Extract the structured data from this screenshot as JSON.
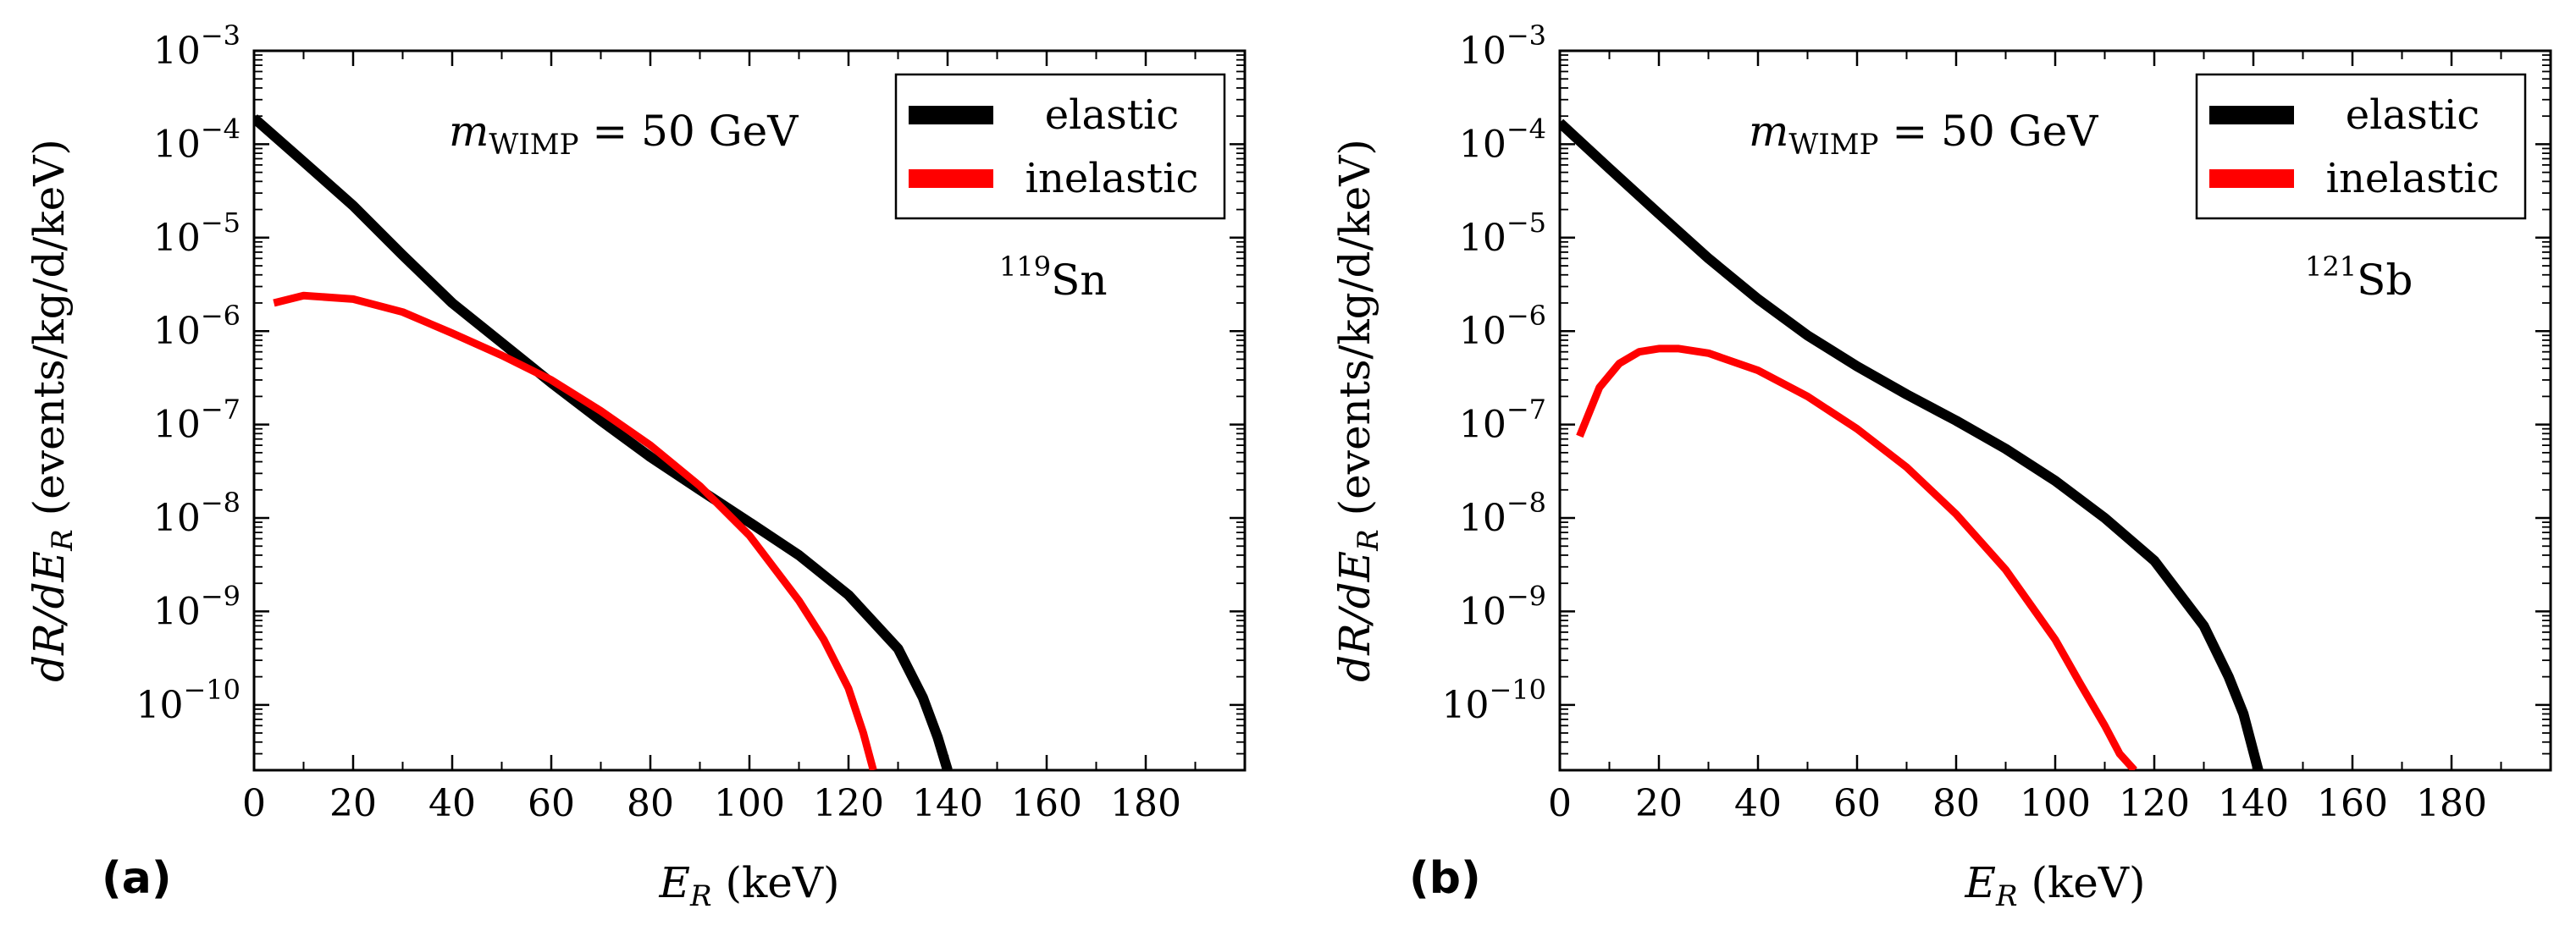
{
  "chart_data": [
    {
      "panel": "(a)",
      "type": "line",
      "xlabel": "E_R (keV)",
      "ylabel": "dR/dE_R (events/kg/d/keV)",
      "xlim": [
        0,
        200
      ],
      "ylim": [
        2e-11,
        0.001
      ],
      "yscale": "log",
      "xticks": [
        0,
        20,
        40,
        60,
        80,
        100,
        120,
        140,
        160,
        180
      ],
      "yticks": [
        -10,
        -9,
        -8,
        -7,
        -6,
        -5,
        -4,
        -3
      ],
      "grid": false,
      "legend_position": "top-right",
      "annotations": [
        "m_WIMP = 50 GeV",
        "119Sn"
      ],
      "series": [
        {
          "name": "elastic",
          "color": "#000000",
          "x": [
            0,
            10,
            20,
            30,
            40,
            50,
            60,
            70,
            80,
            90,
            100,
            110,
            120,
            130,
            135,
            138,
            140
          ],
          "y": [
            0.00019,
            6.5e-05,
            2.2e-05,
            6.5e-06,
            2e-06,
            7.5e-07,
            2.8e-07,
            1.1e-07,
            4.5e-08,
            2e-08,
            9e-09,
            4e-09,
            1.5e-09,
            4e-10,
            1.2e-10,
            4.5e-11,
            2e-11
          ]
        },
        {
          "name": "inelastic",
          "color": "#ff0000",
          "x": [
            4,
            10,
            20,
            30,
            40,
            50,
            60,
            70,
            80,
            90,
            100,
            110,
            115,
            120,
            123,
            125
          ],
          "y": [
            2e-06,
            2.4e-06,
            2.2e-06,
            1.6e-06,
            9.5e-07,
            5.5e-07,
            3e-07,
            1.4e-07,
            6e-08,
            2.2e-08,
            6.5e-09,
            1.3e-09,
            5e-10,
            1.5e-10,
            5e-11,
            2e-11
          ]
        }
      ]
    },
    {
      "panel": "(b)",
      "type": "line",
      "xlabel": "E_R (keV)",
      "ylabel": "dR/dE_R (events/kg/d/keV)",
      "xlim": [
        0,
        200
      ],
      "ylim": [
        2e-11,
        0.001
      ],
      "yscale": "log",
      "xticks": [
        0,
        20,
        40,
        60,
        80,
        100,
        120,
        140,
        160,
        180
      ],
      "yticks": [
        -10,
        -9,
        -8,
        -7,
        -6,
        -5,
        -4,
        -3
      ],
      "grid": false,
      "legend_position": "top-right",
      "annotations": [
        "m_WIMP = 50 GeV",
        "121Sb"
      ],
      "series": [
        {
          "name": "elastic",
          "color": "#000000",
          "x": [
            0,
            10,
            20,
            30,
            40,
            50,
            60,
            70,
            80,
            90,
            100,
            110,
            120,
            130,
            135,
            138,
            141
          ],
          "y": [
            0.00017,
            5.5e-05,
            1.8e-05,
            6e-06,
            2.2e-06,
            9e-07,
            4.2e-07,
            2.1e-07,
            1.1e-07,
            5.5e-08,
            2.5e-08,
            1e-08,
            3.5e-09,
            7e-10,
            2e-10,
            8e-11,
            2e-11
          ]
        },
        {
          "name": "inelastic",
          "color": "#ff0000",
          "x": [
            4,
            8,
            12,
            16,
            20,
            24,
            30,
            40,
            50,
            60,
            70,
            80,
            90,
            100,
            105,
            110,
            113,
            116
          ],
          "y": [
            7.5e-08,
            2.5e-07,
            4.5e-07,
            6e-07,
            6.5e-07,
            6.5e-07,
            5.8e-07,
            3.8e-07,
            2e-07,
            9e-08,
            3.5e-08,
            1.1e-08,
            2.8e-09,
            5e-10,
            1.7e-10,
            6e-11,
            3e-11,
            2e-11
          ]
        }
      ]
    }
  ]
}
